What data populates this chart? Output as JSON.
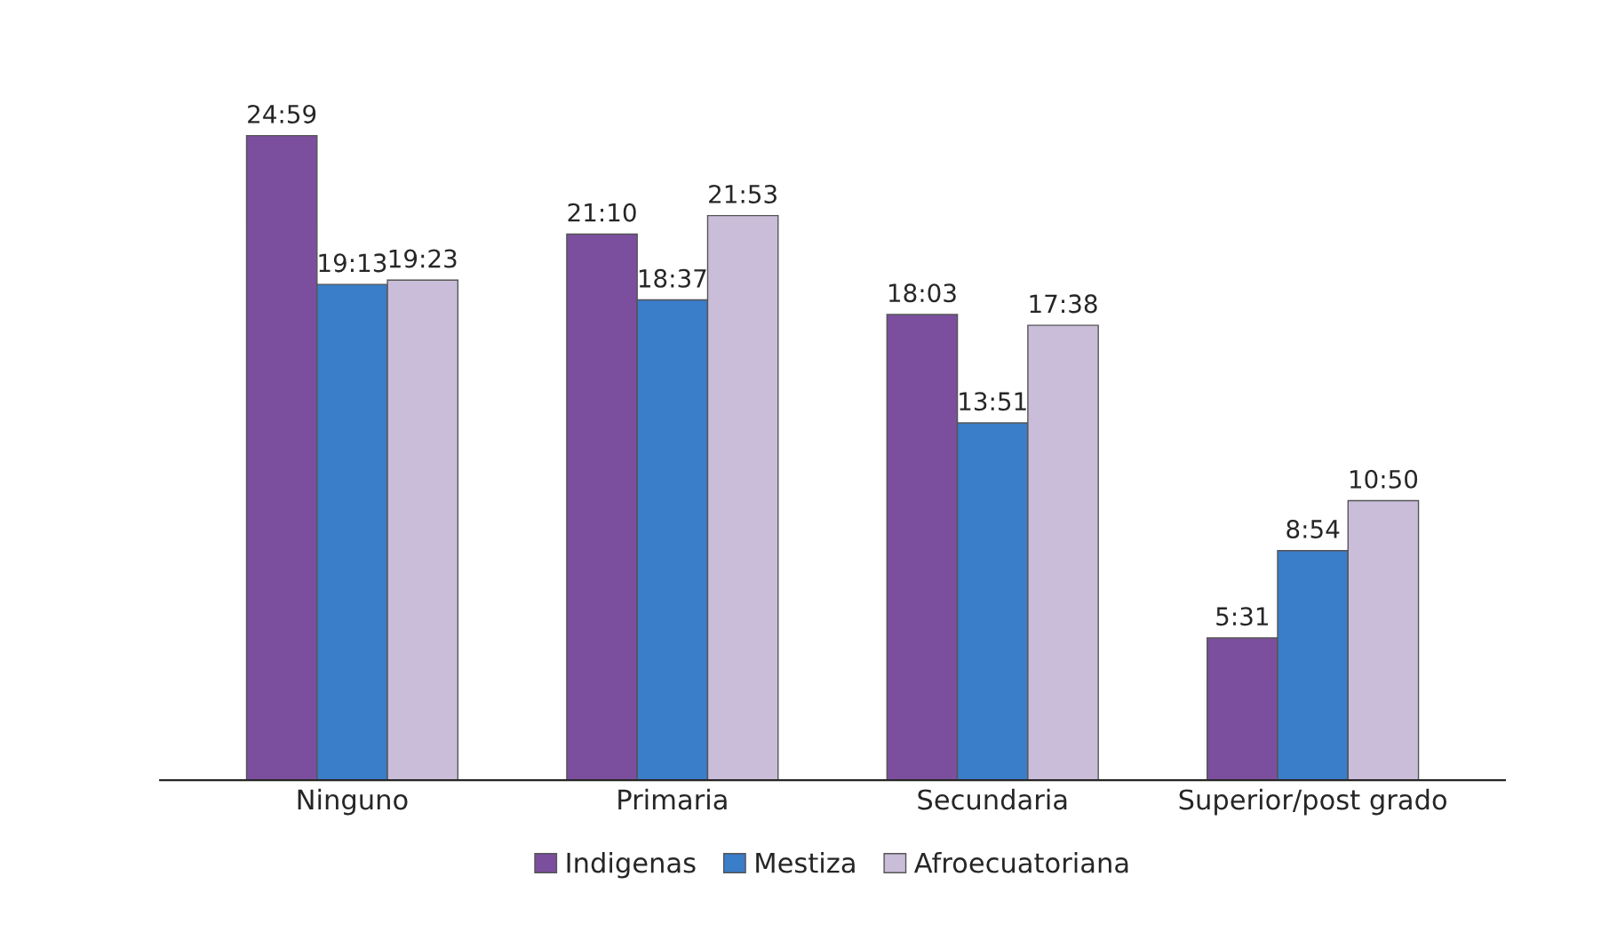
{
  "chart_data": {
    "type": "bar",
    "categories": [
      "Ninguno",
      "Primaria",
      "Secundaria",
      "Superior/post grado"
    ],
    "series": [
      {
        "name": "Indigenas",
        "color": "#7b4f9d",
        "values": [
          24.983,
          21.167,
          18.05,
          5.517
        ],
        "value_labels": [
          "24:59",
          "21:10",
          "18:03",
          "5:31"
        ]
      },
      {
        "name": "Mestiza",
        "color": "#3a7dc9",
        "values": [
          19.217,
          18.617,
          13.85,
          8.9
        ],
        "value_labels": [
          "19:13",
          "18:37",
          "13:51",
          "8:54"
        ]
      },
      {
        "name": "Afroecuatoriana",
        "color": "#c9bdd9",
        "values": [
          19.383,
          21.883,
          17.633,
          10.833
        ],
        "value_labels": [
          "19:23",
          "21:53",
          "17:38",
          "10:50"
        ]
      }
    ],
    "legend": "bottom",
    "grid": false
  }
}
